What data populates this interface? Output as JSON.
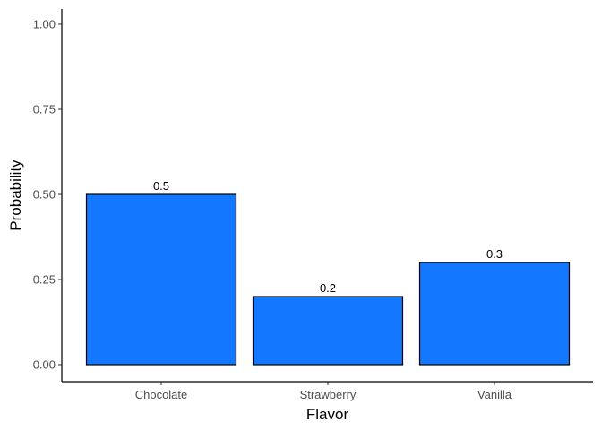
{
  "chart_data": {
    "type": "bar",
    "categories": [
      "Chocolate",
      "Strawberry",
      "Vanilla"
    ],
    "values": [
      0.5,
      0.2,
      0.3
    ],
    "data_labels": [
      "0.5",
      "0.2",
      "0.3"
    ],
    "title": "",
    "xlabel": "Flavor",
    "ylabel": "Probability",
    "ylim": [
      0,
      1
    ],
    "yticks": [
      "0.00",
      "0.25",
      "0.50",
      "0.75",
      "1.00"
    ],
    "grid": false,
    "bar_color": "#1378FF",
    "bar_edge_color": "#000000"
  }
}
